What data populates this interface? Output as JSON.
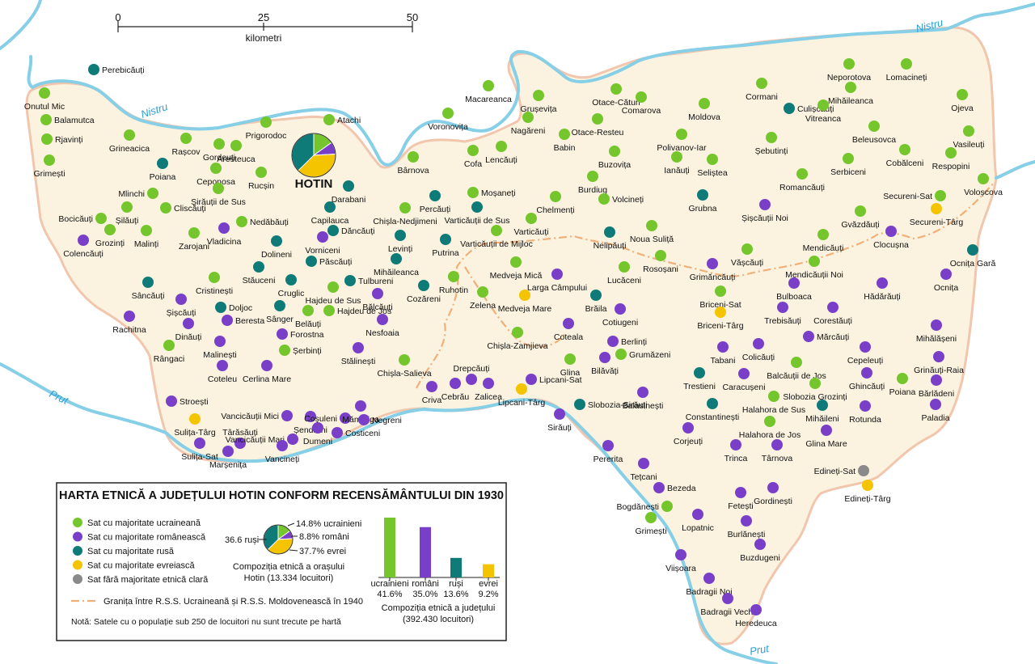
{
  "scale": {
    "ticks": [
      "0",
      "25",
      "50"
    ],
    "unit": "kilometri"
  },
  "rivers": [
    {
      "name": "Nistru",
      "id": "nistru-west"
    },
    {
      "name": "Nistru",
      "id": "nistru-east"
    },
    {
      "name": "Prut",
      "id": "prut-west"
    },
    {
      "name": "Prut",
      "id": "prut-south"
    }
  ],
  "colors": {
    "ukrainian": "#74c62c",
    "romanian": "#7a3fc8",
    "russian": "#0f7b78",
    "jewish": "#f5c400",
    "mixed": "#8a8a8a",
    "territory_fill": "#fbf3df",
    "territory_border": "#f1c6ad",
    "river": "#86cfe6",
    "border_1940": "#f0b07a"
  },
  "city": {
    "name": "HOTIN",
    "pie": [
      {
        "group": "ukrainian",
        "share": 14.8
      },
      {
        "group": "romanian",
        "share": 8.8
      },
      {
        "group": "jewish",
        "share": 37.7
      },
      {
        "group": "russian",
        "share": 36.6
      }
    ]
  },
  "villages": [
    [
      "Perebicăuți",
      "russian"
    ],
    [
      "Onutul Mic",
      "ukrainian"
    ],
    [
      "Balamutca",
      "ukrainian"
    ],
    [
      "Rjavinți",
      "ukrainian"
    ],
    [
      "Grimești",
      "ukrainian"
    ],
    [
      "Grineacica",
      "ukrainian"
    ],
    [
      "Rașcov",
      "ukrainian"
    ],
    [
      "Gordeuți",
      "ukrainian"
    ],
    [
      "Prigorodoc",
      "ukrainian"
    ],
    [
      "Aresteuca",
      "ukrainian"
    ],
    [
      "Atachi",
      "ukrainian"
    ],
    [
      "Poiana",
      "russian"
    ],
    [
      "Ceponosa",
      "ukrainian"
    ],
    [
      "Rucșin",
      "ukrainian"
    ],
    [
      "Mlinchi",
      "ukrainian"
    ],
    [
      "Darabani",
      "russian"
    ],
    [
      "Șirăuții de Sus",
      "ukrainian"
    ],
    [
      "Bocicăuți",
      "ukrainian"
    ],
    [
      "Șilăuți",
      "ukrainian"
    ],
    [
      "Cliscăuți",
      "ukrainian"
    ],
    [
      "Capilauca",
      "russian"
    ],
    [
      "Nedăbăuți",
      "ukrainian"
    ],
    [
      "Colencăuți",
      "romanian"
    ],
    [
      "Grozinți",
      "ukrainian"
    ],
    [
      "Malinți",
      "ukrainian"
    ],
    [
      "Zarojani",
      "ukrainian"
    ],
    [
      "Vladicina",
      "romanian"
    ],
    [
      "Dăncăuți",
      "russian"
    ],
    [
      "Dolineni",
      "russian"
    ],
    [
      "Vorniceni",
      "romanian"
    ],
    [
      "Păscăuți",
      "russian"
    ],
    [
      "Stăuceni",
      "russian"
    ],
    [
      "Sâncăuți",
      "russian"
    ],
    [
      "Cristinești",
      "ukrainian"
    ],
    [
      "Cruglic",
      "russian"
    ],
    [
      "Tulbureni",
      "russian"
    ],
    [
      "Hajdeu de Sus",
      "ukrainian"
    ],
    [
      "Șișcăuți",
      "romanian"
    ],
    [
      "Doljoc",
      "russian"
    ],
    [
      "Sânger",
      "russian"
    ],
    [
      "Rachitna",
      "romanian"
    ],
    [
      "Beresta",
      "romanian"
    ],
    [
      "Belăuți",
      "ukrainian"
    ],
    [
      "Hajdeu de Jos",
      "ukrainian"
    ],
    [
      "Dinăuți",
      "romanian"
    ],
    [
      "Forostna",
      "romanian"
    ],
    [
      "Rângaci",
      "ukrainian"
    ],
    [
      "Malinești",
      "romanian"
    ],
    [
      "Șerbinți",
      "ukrainian"
    ],
    [
      "Coteleu",
      "romanian"
    ],
    [
      "Cerlina Mare",
      "romanian"
    ],
    [
      "Bălcăuți",
      "romanian"
    ],
    [
      "Nesfoaia",
      "romanian"
    ],
    [
      "Stălinești",
      "romanian"
    ],
    [
      "Chișla-Nedjimeni",
      "ukrainian"
    ],
    [
      "Percăuți",
      "russian"
    ],
    [
      "Varticăuții de Sus",
      "russian"
    ],
    [
      "Levinți",
      "russian"
    ],
    [
      "Putrina",
      "russian"
    ],
    [
      "Varticăuți",
      "ukrainian"
    ],
    [
      "Varticăuții de Mijloc",
      "ukrainian"
    ],
    [
      "Mihăileanca",
      "russian"
    ],
    [
      "Ruhotin",
      "ukrainian"
    ],
    [
      "Cozăreni",
      "russian"
    ],
    [
      "Zelena",
      "ukrainian"
    ],
    [
      "Medveja Mică",
      "ukrainian"
    ],
    [
      "Medveja Mare",
      "jewish"
    ],
    [
      "Chișla-Zamjieva",
      "ukrainian"
    ],
    [
      "Chișla-Salieva",
      "ukrainian"
    ],
    [
      "Larga Câmpului",
      "romanian"
    ],
    [
      "Coteala",
      "romanian"
    ],
    [
      "Glina",
      "ukrainian"
    ],
    [
      "Brăila",
      "russian"
    ],
    [
      "Cotiugeni",
      "romanian"
    ],
    [
      "Berlinți",
      "romanian"
    ],
    [
      "Bilăvăți",
      "romanian"
    ],
    [
      "Grumăzeni",
      "ukrainian"
    ],
    [
      "Drepcăuți",
      "romanian"
    ],
    [
      "Criva",
      "romanian"
    ],
    [
      "Cebrău",
      "romanian"
    ],
    [
      "Zalicea",
      "romanian"
    ],
    [
      "Lipcani-Sat",
      "romanian"
    ],
    [
      "Lipcani-Târg",
      "jewish"
    ],
    [
      "Sirăuți",
      "romanian"
    ],
    [
      "Slobozia-Sirăuți",
      "russian"
    ],
    [
      "Stroești",
      "romanian"
    ],
    [
      "Sulița-Târg",
      "jewish"
    ],
    [
      "Sulița-Sat",
      "romanian"
    ],
    [
      "Târăsăuți",
      "romanian"
    ],
    [
      "Marșenița",
      "romanian"
    ],
    [
      "Vancicăuții Mici",
      "romanian"
    ],
    [
      "Șendreni",
      "romanian"
    ],
    [
      "Vancicăuții Mari",
      "romanian"
    ],
    [
      "Dumeni",
      "romanian"
    ],
    [
      "Vancineți",
      "romanian"
    ],
    [
      "Coșuleni",
      "romanian"
    ],
    [
      "Mămăliga",
      "romanian"
    ],
    [
      "Negreni",
      "romanian"
    ],
    [
      "Costiceni",
      "romanian"
    ],
    [
      "Macareanca",
      "ukrainian"
    ],
    [
      "Voronovița",
      "ukrainian"
    ],
    [
      "Grușevița",
      "ukrainian"
    ],
    [
      "Nagăreni",
      "ukrainian"
    ],
    [
      "Otace-Cătun",
      "ukrainian"
    ],
    [
      "Comarova",
      "ukrainian"
    ],
    [
      "Moldova",
      "ukrainian"
    ],
    [
      "Cormani",
      "ukrainian"
    ],
    [
      "Neporotova",
      "ukrainian"
    ],
    [
      "Lomacineți",
      "ukrainian"
    ],
    [
      "Mihăileanca",
      "ukrainian"
    ],
    [
      "Ojeva",
      "ukrainian"
    ],
    [
      "Culișcăuți",
      "russian"
    ],
    [
      "Vitreanca",
      "ukrainian"
    ],
    [
      "Otace-Resteu",
      "ukrainian"
    ],
    [
      "Babin",
      "ukrainian"
    ],
    [
      "Polivanov-Iar",
      "ukrainian"
    ],
    [
      "Șebutinți",
      "ukrainian"
    ],
    [
      "Beleusovca",
      "ukrainian"
    ],
    [
      "Vasileuți",
      "ukrainian"
    ],
    [
      "Bârnova",
      "ukrainian"
    ],
    [
      "Cofa",
      "ukrainian"
    ],
    [
      "Lencăuți",
      "ukrainian"
    ],
    [
      "Buzovița",
      "ukrainian"
    ],
    [
      "Cobălceni",
      "ukrainian"
    ],
    [
      "Respopini",
      "ukrainian"
    ],
    [
      "Moșaneți",
      "ukrainian"
    ],
    [
      "Burdiug",
      "ukrainian"
    ],
    [
      "Ianăuți",
      "ukrainian"
    ],
    [
      "Seliștea",
      "ukrainian"
    ],
    [
      "Serbiceni",
      "ukrainian"
    ],
    [
      "Romancăuți",
      "ukrainian"
    ],
    [
      "Voloșcova",
      "ukrainian"
    ],
    [
      "Chelmenți",
      "ukrainian"
    ],
    [
      "Volcineți",
      "ukrainian"
    ],
    [
      "Grubna",
      "russian"
    ],
    [
      "Securenі-Sat",
      "ukrainian"
    ],
    [
      "Șișcăuții Noi",
      "romanian"
    ],
    [
      "Securenі-Târg",
      "jewish"
    ],
    [
      "Gvăzdăuți",
      "ukrainian"
    ],
    [
      "Nelipăuți",
      "russian"
    ],
    [
      "Noua Suliță",
      "ukrainian"
    ],
    [
      "Clocușna",
      "romanian"
    ],
    [
      "Mendicăuți",
      "ukrainian"
    ],
    [
      "Vășcăuți",
      "ukrainian"
    ],
    [
      "Ocnița Gară",
      "russian"
    ],
    [
      "Rosoșani",
      "ukrainian"
    ],
    [
      "Lucăceni",
      "ukrainian"
    ],
    [
      "Grimăncăuți",
      "romanian"
    ],
    [
      "Mendicăuții Noi",
      "ukrainian"
    ],
    [
      "Ocnița",
      "romanian"
    ],
    [
      "Bulboaca",
      "romanian"
    ],
    [
      "Hădărăuți",
      "romanian"
    ],
    [
      "Briceni-Sat",
      "ukrainian"
    ],
    [
      "Trebisăuți",
      "romanian"
    ],
    [
      "Corestăuți",
      "romanian"
    ],
    [
      "Briceni-Târg",
      "jewish"
    ],
    [
      "Mihălășeni",
      "romanian"
    ],
    [
      "Tabani",
      "romanian"
    ],
    [
      "Colicăuți",
      "romanian"
    ],
    [
      "Mărcăuți",
      "romanian"
    ],
    [
      "Cepeleuți",
      "romanian"
    ],
    [
      "Grinăuți-Raia",
      "romanian"
    ],
    [
      "Balcăuții de Jos",
      "ukrainian"
    ],
    [
      "Caracușeni",
      "romanian"
    ],
    [
      "Trestieni",
      "russian"
    ],
    [
      "Ghincăuți",
      "romanian"
    ],
    [
      "Poiana",
      "ukrainian"
    ],
    [
      "Bărlădeni",
      "romanian"
    ],
    [
      "Balasinești",
      "romanian"
    ],
    [
      "Slobozia Grozinți",
      "ukrainian"
    ],
    [
      "Halahora de Sus",
      "ukrainian"
    ],
    [
      "Constantinești",
      "russian"
    ],
    [
      "Mihăileni",
      "russian"
    ],
    [
      "Rotunda",
      "romanian"
    ],
    [
      "Paladia",
      "romanian"
    ],
    [
      "Corjeuți",
      "romanian"
    ],
    [
      "Halahora de Jos",
      "ukrainian"
    ],
    [
      "Glina Mare",
      "romanian"
    ],
    [
      "Pererita",
      "romanian"
    ],
    [
      "Trinca",
      "romanian"
    ],
    [
      "Târnova",
      "romanian"
    ],
    [
      "Tețcani",
      "romanian"
    ],
    [
      "Edineți-Sat",
      "mixed"
    ],
    [
      "Edineți-Târg",
      "jewish"
    ],
    [
      "Bezeda",
      "romanian"
    ],
    [
      "Fetești",
      "romanian"
    ],
    [
      "Gordinești",
      "romanian"
    ],
    [
      "Bogdănești",
      "ukrainian"
    ],
    [
      "Grimești",
      "ukrainian"
    ],
    [
      "Lopatnic",
      "romanian"
    ],
    [
      "Burlănești",
      "romanian"
    ],
    [
      "Buzdugeni",
      "romanian"
    ],
    [
      "Viișoara",
      "romanian"
    ],
    [
      "Badragii Noi",
      "romanian"
    ],
    [
      "Badragii Vechi",
      "romanian"
    ],
    [
      "Heredeuca",
      "romanian"
    ]
  ],
  "legend": {
    "title": "HARTA ETNICĂ A JUDEȚULUI HOTIN CONFORM RECENSĂMÂNTULUI DIN 1930",
    "items": [
      {
        "group": "ukrainian",
        "label": "Sat cu majoritate ucraineană"
      },
      {
        "group": "romanian",
        "label": "Sat cu majoritate românească"
      },
      {
        "group": "russian",
        "label": "Sat cu majoritate rusă"
      },
      {
        "group": "jewish",
        "label": "Sat cu majoritate evreiască"
      },
      {
        "group": "mixed",
        "label": "Sat fără majoritate etnică clară"
      }
    ],
    "border_label": "Granița între R.S.S. Ucraineană și R.S.S. Moldovenească în 1940",
    "note": "Notă: Satele cu o populație sub 250 de locuitori nu sunt trecute pe hartă",
    "pie_labels": {
      "ukrainian": "14.8% ucrainieni",
      "romanian": "8.8% români",
      "jewish": "37.7% evrei",
      "russian": "36.6 ruși"
    },
    "pie_caption": [
      "Compoziția etnică a orașului",
      "Hotin (13.334 locuitori)"
    ],
    "bar_caption": [
      "Compoziția etnică a județului",
      "(392.430 locuitori)"
    ]
  },
  "chart_data": {
    "type": "bar",
    "categories": [
      "ucrainieni",
      "români",
      "ruși",
      "evrei"
    ],
    "values": [
      41.6,
      35.0,
      13.6,
      9.2
    ],
    "value_labels": [
      "41.6%",
      "35.0%",
      "13.6%",
      "9.2%"
    ],
    "title": "Compoziția etnică a județului",
    "subtitle": "(392.430 locuitori)",
    "groups": [
      "ukrainian",
      "romanian",
      "russian",
      "jewish"
    ]
  }
}
